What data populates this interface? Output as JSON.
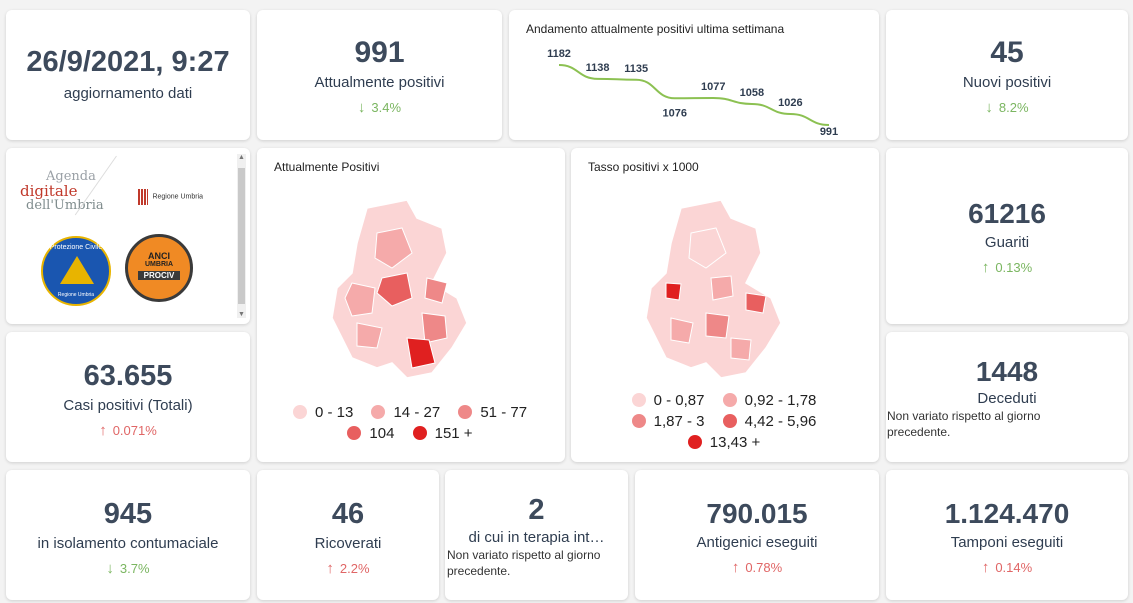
{
  "update": {
    "datetime": "26/9/2021, 9:27",
    "label": "aggiornamento dati"
  },
  "positivi": {
    "value": "991",
    "label": "Attualmente positivi",
    "change": "3.4%",
    "dir": "down"
  },
  "trend": {
    "title": "Andamento attualmente positivi ultima settimana",
    "chart_data": {
      "type": "line",
      "title": "Andamento attualmente positivi ultima settimana",
      "values": [
        1182,
        1138,
        1135,
        1076,
        1077,
        1058,
        1026,
        991
      ],
      "color": "#8cc152"
    }
  },
  "nuovi": {
    "value": "45",
    "label": "Nuovi positivi",
    "change": "8.2%",
    "dir": "down"
  },
  "logos": {
    "agenda_line1": "Agenda",
    "agenda_line2": "digitale",
    "agenda_line3": "dell'Umbria",
    "regione": "Regione Umbria",
    "pc_top": "Protezione Civile",
    "pc_bottom": "Regione Umbria",
    "anci_top": "ANCI",
    "anci_mid": "UMBRIA",
    "anci_bottom": "PROCIV"
  },
  "map1": {
    "title": "Attualmente Positivi",
    "legend": [
      {
        "label": "0 - 13",
        "color": "#fbd5d5"
      },
      {
        "label": "14 - 27",
        "color": "#f5aaaa"
      },
      {
        "label": "51 - 77",
        "color": "#ee8888"
      },
      {
        "label": "104",
        "color": "#e85f5f"
      },
      {
        "label": "151 +",
        "color": "#e02020"
      }
    ]
  },
  "map2": {
    "title": "Tasso positivi x 1000",
    "legend": [
      {
        "label": "0 - 0,87",
        "color": "#fbd5d5"
      },
      {
        "label": "0,92 - 1,78",
        "color": "#f5aaaa"
      },
      {
        "label": "1,87 - 3",
        "color": "#ee8888"
      },
      {
        "label": "4,42 - 5,96",
        "color": "#e85f5f"
      },
      {
        "label": "13,43 +",
        "color": "#e02020"
      }
    ]
  },
  "guariti": {
    "value": "61216",
    "label": "Guariti",
    "change": "0.13%",
    "dir": "up-green"
  },
  "casi": {
    "value": "63.655",
    "label": "Casi positivi (Totali)",
    "change": "0.071%",
    "dir": "up"
  },
  "deceduti": {
    "value": "1448",
    "label": "Deceduti",
    "note": "Non variato rispetto al giorno precedente."
  },
  "isolamento": {
    "value": "945",
    "label": "in isolamento contumaciale",
    "change": "3.7%",
    "dir": "down"
  },
  "ricoverati": {
    "value": "46",
    "label": "Ricoverati",
    "change": "2.2%",
    "dir": "up"
  },
  "terapia": {
    "value": "2",
    "label": "di cui in terapia int…",
    "note": "Non variato rispetto al giorno precedente."
  },
  "antigenici": {
    "value": "790.015",
    "label": "Antigenici eseguiti",
    "change": "0.78%",
    "dir": "up"
  },
  "tamponi": {
    "value": "1.124.470",
    "label": "Tamponi eseguiti",
    "change": "0.14%",
    "dir": "up"
  }
}
